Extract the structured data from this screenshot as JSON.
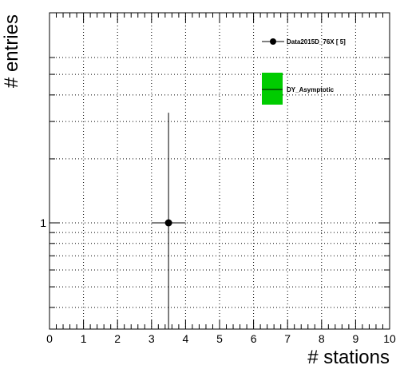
{
  "chart_data": {
    "type": "scatter",
    "title": "",
    "xlabel": "# stations",
    "ylabel": "# entries",
    "xlim": [
      0,
      10
    ],
    "ylog": true,
    "grid": true,
    "x_ticks": [
      "0",
      "1",
      "2",
      "3",
      "4",
      "5",
      "6",
      "7",
      "8",
      "9",
      "10"
    ],
    "y_ticks": [
      "1"
    ],
    "series": [
      {
        "name": "Data2015D_76X [       5]",
        "points": [
          {
            "x": 3.5,
            "y": 1,
            "xerr": 0.5,
            "yerr_low": 1,
            "yerr_high": 2.3
          }
        ],
        "style": "marker-errorbar",
        "color": "#000000"
      },
      {
        "name": "DY_Asymptotic",
        "points": [],
        "style": "filled-box",
        "color": "#00cc00"
      }
    ],
    "legend_position": "top-right"
  }
}
